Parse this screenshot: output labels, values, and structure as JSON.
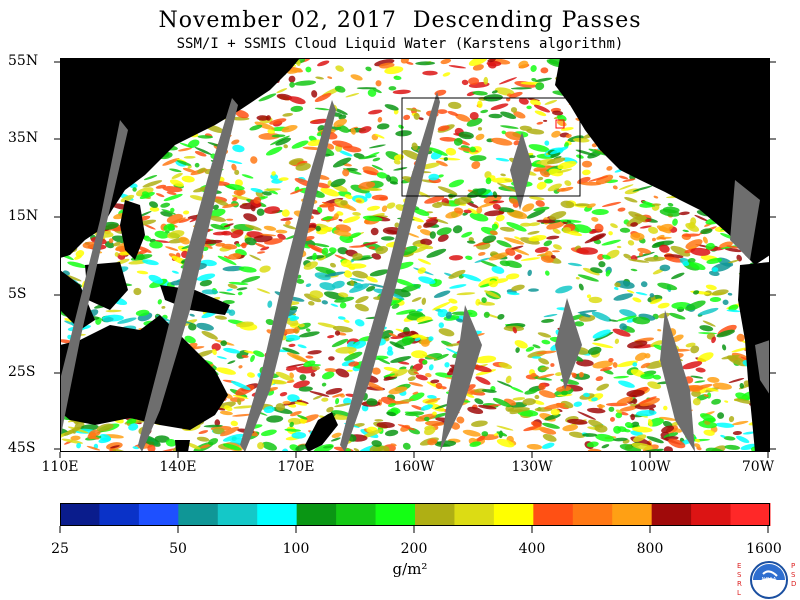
{
  "header": {
    "title": "November 02, 2017  Descending Passes",
    "subtitle": "SSM/I + SSMIS Cloud Liquid Water (Karstens algorithm)"
  },
  "axes": {
    "latitude_labels": [
      "55N",
      "35N",
      "15N",
      "5S",
      "25S",
      "45S"
    ],
    "longitude_labels": [
      "110E",
      "140E",
      "170E",
      "160W",
      "130W",
      "100W",
      "70W"
    ]
  },
  "colorbar": {
    "labels": [
      "25",
      "50",
      "100",
      "200",
      "400",
      "800",
      "1600"
    ],
    "units": "g/m²",
    "colors": [
      "#0a1c8c",
      "#0a32c8",
      "#1e50ff",
      "#0f9696",
      "#14c8c8",
      "#00ffff",
      "#0a9614",
      "#14c814",
      "#14ff14",
      "#afaf14",
      "#dcdc14",
      "#ffff00",
      "#ff5014",
      "#ff7814",
      "#ffa014",
      "#a00a0a",
      "#dc1414",
      "#ff2828"
    ]
  },
  "legend_colors": {
    "land": "#000000",
    "no_data_gap": "#6e6e6e",
    "background": "#ffffff",
    "box_outline": "#000000"
  },
  "logo": {
    "left_text": "ESRL",
    "right_text": "PSD",
    "center_text": "NOAA"
  }
}
